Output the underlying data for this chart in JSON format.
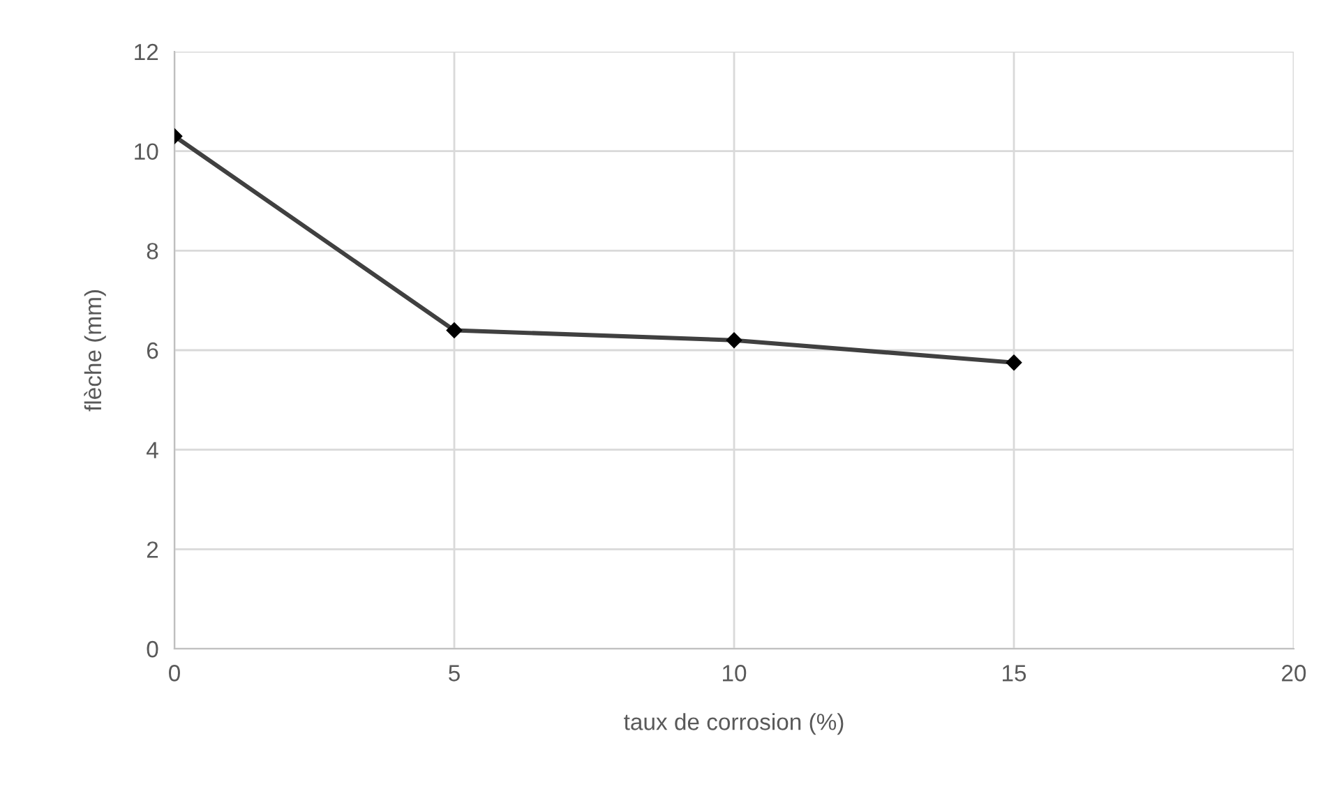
{
  "chart_data": {
    "type": "line",
    "xlabel": "taux de corrosion (%)",
    "ylabel": "flèche (mm)",
    "x": [
      0,
      5,
      10,
      15
    ],
    "series": [
      {
        "color": "#404040",
        "values": [
          10.3,
          6.4,
          6.2,
          5.75
        ]
      }
    ],
    "xlim": [
      0,
      20
    ],
    "xticks": [
      0,
      5,
      10,
      15,
      20
    ],
    "ylim": [
      0,
      12
    ],
    "yticks": [
      0,
      2,
      4,
      6,
      8,
      10,
      12
    ],
    "grid": true,
    "marker": "diamond",
    "line_style": "solid",
    "legend": false
  }
}
